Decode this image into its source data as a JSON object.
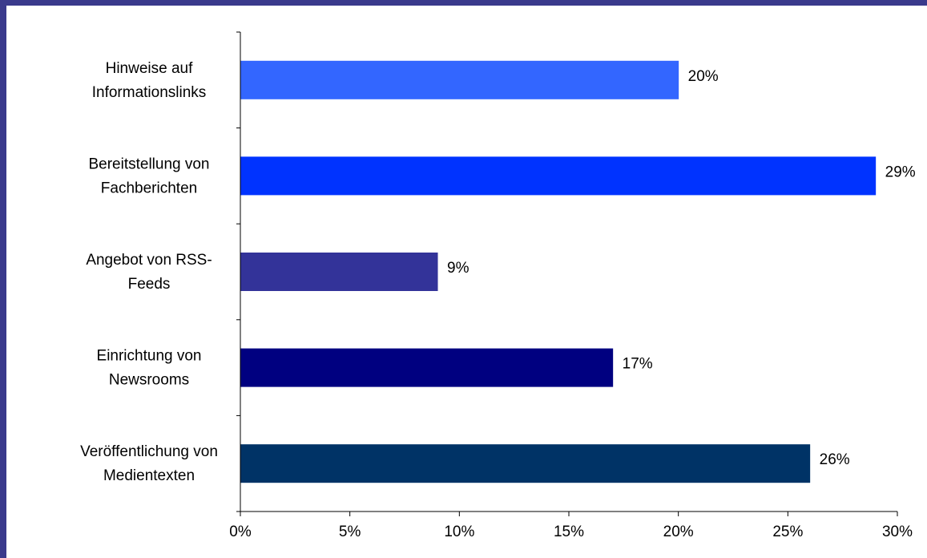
{
  "chart_data": {
    "type": "bar",
    "orientation": "horizontal",
    "categories": [
      [
        "Hinweise auf",
        "Informationslinks"
      ],
      [
        "Bereitstellung von",
        "Fachberichten"
      ],
      [
        "Angebot von RSS-",
        "Feeds"
      ],
      [
        "Einrichtung von",
        "Newsrooms"
      ],
      [
        "Veröffentlichung von",
        "Medientexten"
      ]
    ],
    "values": [
      20,
      29,
      9,
      17,
      26
    ],
    "value_labels": [
      "20%",
      "29%",
      "9%",
      "17%",
      "26%"
    ],
    "bar_colors": [
      "#3366ff",
      "#0033ff",
      "#333399",
      "#000080",
      "#003366"
    ],
    "xlim": [
      0,
      30
    ],
    "xticks": [
      0,
      5,
      10,
      15,
      20,
      25,
      30
    ],
    "xtick_labels": [
      "0%",
      "5%",
      "10%",
      "15%",
      "20%",
      "25%",
      "30%"
    ],
    "grid": false,
    "legend": "none",
    "title": "",
    "xlabel": "",
    "ylabel": ""
  }
}
